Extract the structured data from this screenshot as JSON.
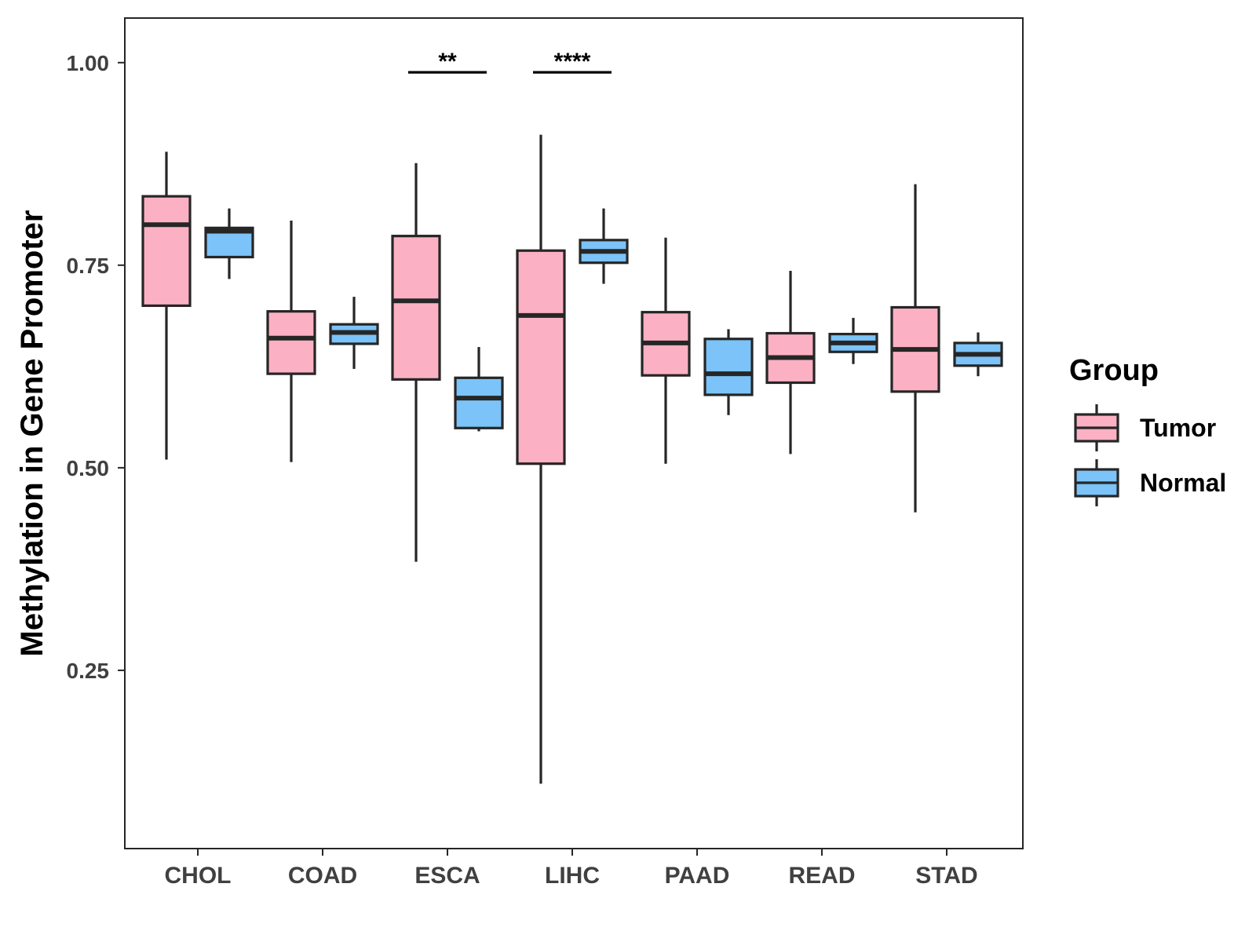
{
  "chart_data": {
    "type": "boxplot",
    "title": "",
    "xlabel": "",
    "ylabel": "Methylation in Gene Promoter",
    "ylim": [
      0.03,
      1.055
    ],
    "yticks": [
      0.25,
      0.5,
      0.75,
      1.0
    ],
    "ytick_labels": [
      "0.25",
      "0.50",
      "0.75",
      "1.00"
    ],
    "categories": [
      "CHOL",
      "COAD",
      "ESCA",
      "LIHC",
      "PAAD",
      "READ",
      "STAD"
    ],
    "legend": {
      "title": "Group",
      "position": "right",
      "entries": [
        {
          "name": "Tumor",
          "color": "#FBB1C3"
        },
        {
          "name": "Normal",
          "color": "#7BC3F8"
        }
      ]
    },
    "series": [
      {
        "name": "Tumor",
        "color": "#FBB1C3",
        "boxes": [
          {
            "category": "CHOL",
            "whisker_low": 0.51,
            "q1": 0.7,
            "median": 0.8,
            "q3": 0.835,
            "whisker_high": 0.89
          },
          {
            "category": "COAD",
            "whisker_low": 0.507,
            "q1": 0.616,
            "median": 0.66,
            "q3": 0.693,
            "whisker_high": 0.805
          },
          {
            "category": "ESCA",
            "whisker_low": 0.384,
            "q1": 0.609,
            "median": 0.706,
            "q3": 0.786,
            "whisker_high": 0.876
          },
          {
            "category": "LIHC",
            "whisker_low": 0.11,
            "q1": 0.505,
            "median": 0.688,
            "q3": 0.768,
            "whisker_high": 0.911
          },
          {
            "category": "PAAD",
            "whisker_low": 0.505,
            "q1": 0.614,
            "median": 0.654,
            "q3": 0.692,
            "whisker_high": 0.784
          },
          {
            "category": "READ",
            "whisker_low": 0.517,
            "q1": 0.605,
            "median": 0.636,
            "q3": 0.666,
            "whisker_high": 0.743
          },
          {
            "category": "STAD",
            "whisker_low": 0.445,
            "q1": 0.594,
            "median": 0.646,
            "q3": 0.698,
            "whisker_high": 0.85
          }
        ]
      },
      {
        "name": "Normal",
        "color": "#7BC3F8",
        "boxes": [
          {
            "category": "CHOL",
            "whisker_low": 0.733,
            "q1": 0.76,
            "median": 0.792,
            "q3": 0.796,
            "whisker_high": 0.82
          },
          {
            "category": "COAD",
            "whisker_low": 0.622,
            "q1": 0.653,
            "median": 0.667,
            "q3": 0.677,
            "whisker_high": 0.711
          },
          {
            "category": "ESCA",
            "whisker_low": 0.545,
            "q1": 0.549,
            "median": 0.586,
            "q3": 0.611,
            "whisker_high": 0.649
          },
          {
            "category": "LIHC",
            "whisker_low": 0.727,
            "q1": 0.753,
            "median": 0.767,
            "q3": 0.781,
            "whisker_high": 0.82
          },
          {
            "category": "PAAD",
            "whisker_low": 0.565,
            "q1": 0.59,
            "median": 0.616,
            "q3": 0.659,
            "whisker_high": 0.671
          },
          {
            "category": "READ",
            "whisker_low": 0.628,
            "q1": 0.643,
            "median": 0.654,
            "q3": 0.665,
            "whisker_high": 0.685
          },
          {
            "category": "STAD",
            "whisker_low": 0.613,
            "q1": 0.626,
            "median": 0.64,
            "q3": 0.654,
            "whisker_high": 0.667
          }
        ]
      }
    ],
    "annotations": [
      {
        "category": "ESCA",
        "label": "**",
        "y": 0.988
      },
      {
        "category": "LIHC",
        "label": "****",
        "y": 0.988
      }
    ]
  }
}
